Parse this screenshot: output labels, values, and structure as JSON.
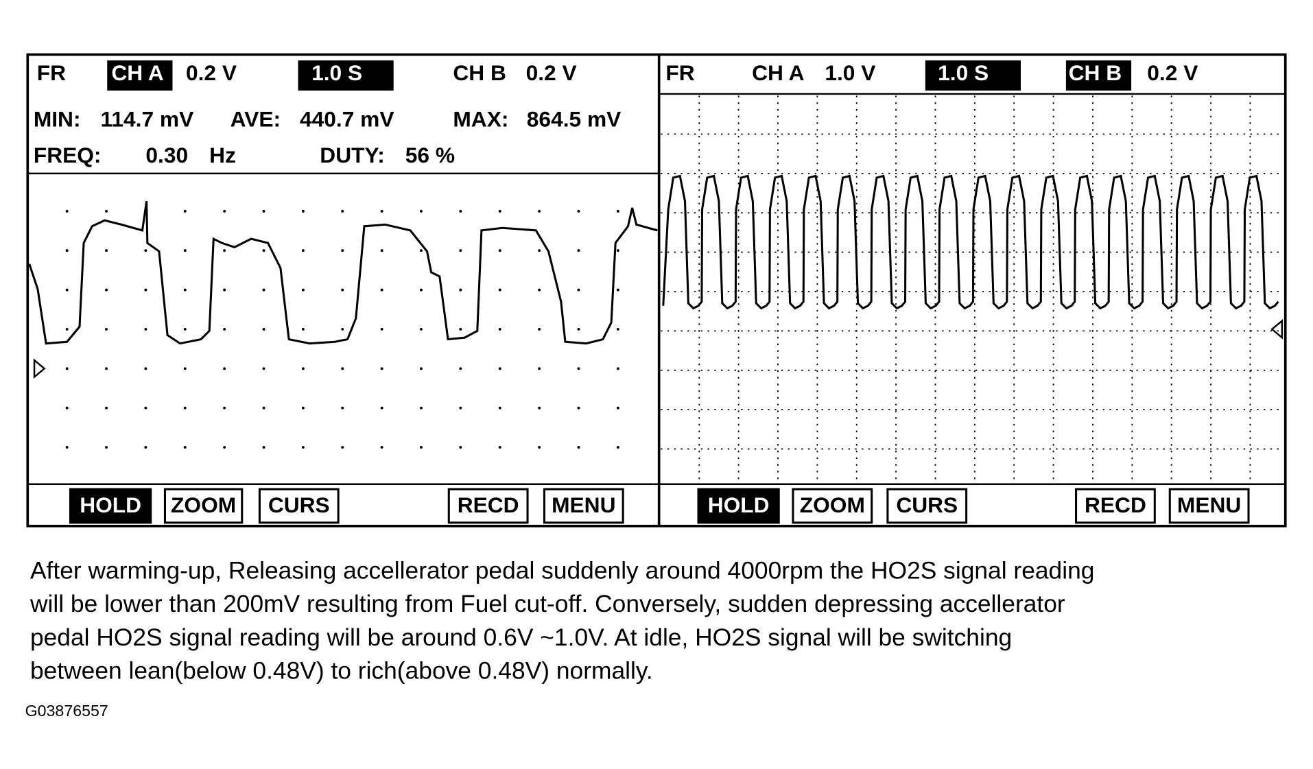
{
  "panels": [
    {
      "header": {
        "fr": "FR",
        "ch_a": "CH A",
        "ch_a_scale": "0.2 V",
        "time": "1.0 S",
        "ch_b": "CH B",
        "ch_b_scale": "0.2 V"
      },
      "readings": {
        "min_label": "MIN:",
        "min": "114.7 mV",
        "ave_label": "AVE:",
        "ave": "440.7 mV",
        "max_label": "MAX:",
        "max": "864.5 mV",
        "freq_label": "FREQ:",
        "freq": "0.30",
        "freq_unit": "Hz",
        "duty_label": "DUTY:",
        "duty": "56 %"
      },
      "buttons": [
        "HOLD",
        "ZOOM",
        "CURS",
        "RECD",
        "MENU"
      ]
    },
    {
      "header": {
        "fr": "FR",
        "ch_a": "CH A",
        "ch_a_scale": "1.0 V",
        "time": "1.0 S",
        "ch_b": "CH B",
        "ch_b_scale": "0.2 V"
      },
      "buttons": [
        "HOLD",
        "ZOOM",
        "CURS",
        "RECD",
        "MENU"
      ]
    }
  ],
  "caption": [
    "After warming-up, Releasing accellerator pedal suddenly around 4000rpm the HO2S signal reading",
    "will be lower than 200mV resulting from Fuel cut-off.   Conversely, sudden depressing accellerator",
    "pedal HO2S signal reading will be around 0.6V ~1.0V.  At idle, HO2S signal will be switching",
    "between lean(below 0.48V) to rich(above 0.48V) normally."
  ],
  "figure_id": "G03876557"
}
